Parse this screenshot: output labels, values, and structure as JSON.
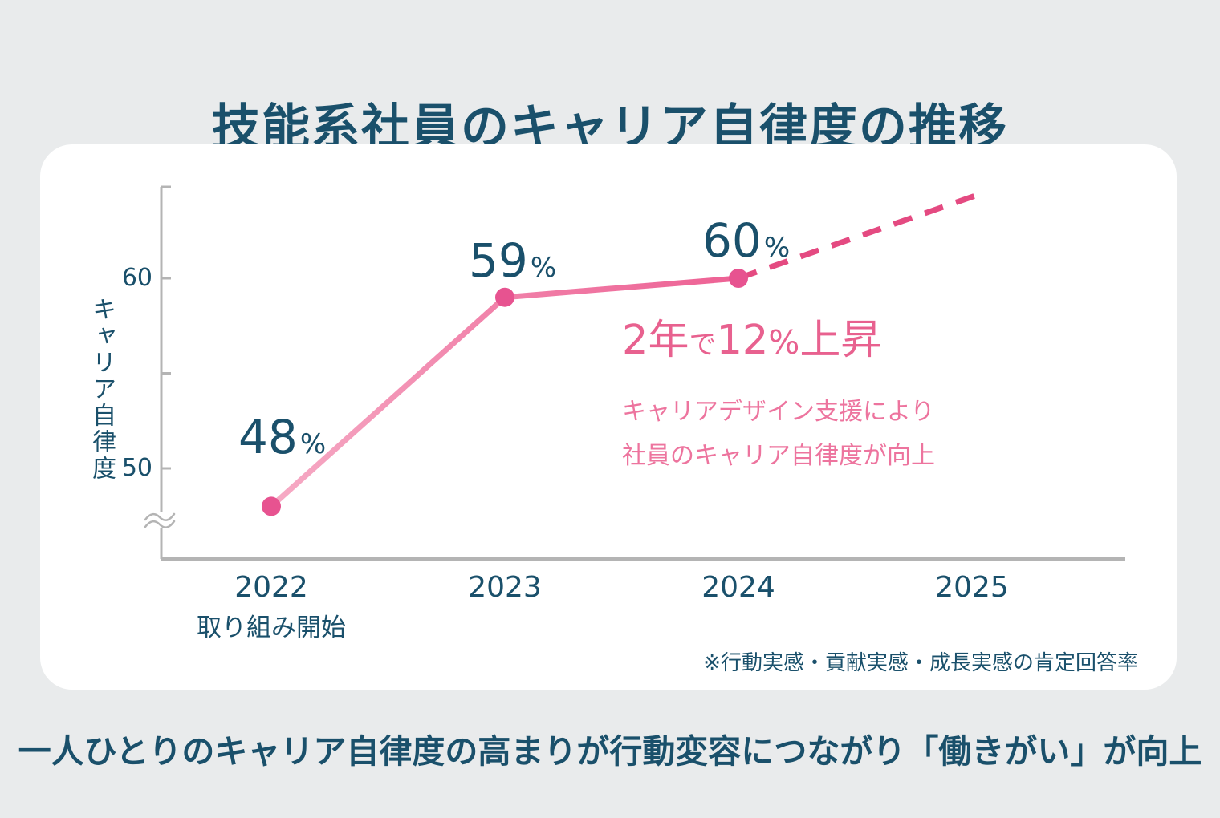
{
  "page": {
    "title": "技能系社員のキャリア自律度の推移",
    "bottom_message": "一人ひとりのキャリア自律度の高まりが行動変容につながり「働きがい」が向上",
    "background": "#e9ebec",
    "card_background": "#ffffff"
  },
  "colors": {
    "text_dark": "#1a506b",
    "axis_gray": "#b4b4b4",
    "line_gradient_start": "#f6abc5",
    "line_gradient_end": "#ed6194",
    "projection_pink": "#e44a81",
    "dot_pink": "#e75390",
    "annotation_heading_pink": "#e8618f",
    "annotation_body_pink": "#ed749e"
  },
  "chart_data": {
    "type": "line",
    "title": "技能系社員のキャリア自律度の推移",
    "ylabel": "キャリア自律度",
    "x": [
      2022,
      2023,
      2024
    ],
    "values": [
      48,
      59,
      60
    ],
    "unit": "%",
    "point_labels": [
      "48%",
      "59%",
      "60%"
    ],
    "x_ticks": [
      "2022",
      "2023",
      "2024",
      "2025"
    ],
    "x_tick_years": [
      2022,
      2023,
      2024,
      2025
    ],
    "x_axis_note": {
      "year": 2022,
      "label": "取り組み開始"
    },
    "y_ticks_labeled": [
      60,
      50
    ],
    "y_ticks_unlabeled": [
      55
    ],
    "y_axis_break_below": 50,
    "ylim_displayed": [
      46.5,
      65
    ],
    "grid": "off",
    "legend": "none",
    "projection": {
      "style": "dashed",
      "from_year": 2024,
      "from_value": 60,
      "to_year": 2025.05,
      "to_value": 64.5
    },
    "footnote": "※行動実感・貢献実感・成長実感の肯定回答率"
  },
  "annotation": {
    "heading_plain": "2年で12%上昇",
    "heading_parts": [
      {
        "text": "2年",
        "size": "lg"
      },
      {
        "text": "で",
        "size": "sm"
      },
      {
        "text": "12",
        "size": "lg"
      },
      {
        "text": "%",
        "size": "md"
      },
      {
        "text": "上昇",
        "size": "lg"
      }
    ],
    "lines": [
      "キャリアデザイン支援により",
      "社員のキャリア自律度が向上"
    ]
  }
}
